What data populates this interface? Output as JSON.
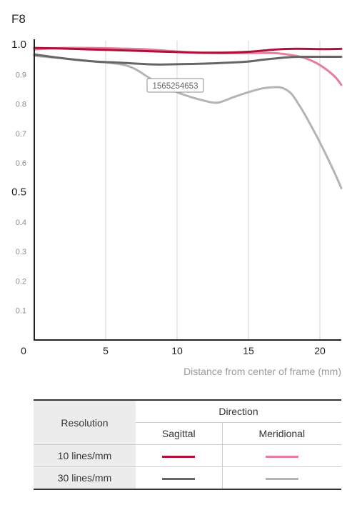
{
  "chart_data": {
    "type": "line",
    "title": "F8",
    "xlabel": "Distance from center of frame (mm)",
    "ylabel": "",
    "xlim": [
      0,
      21.5
    ],
    "ylim": [
      0,
      1.0
    ],
    "x_ticks": [
      0,
      5,
      10,
      15,
      20
    ],
    "x_tick_labels": [
      "0",
      "5",
      "10",
      "15",
      "20"
    ],
    "y_ticks": [
      0.1,
      0.2,
      0.3,
      0.4,
      0.5,
      0.6,
      0.7,
      0.8,
      0.9,
      1.0
    ],
    "y_tick_labels": [
      "0.1",
      "0.2",
      "0.3",
      "0.4",
      "0.5",
      "0.6",
      "0.7",
      "0.8",
      "0.9",
      "1.0"
    ],
    "grid": "vertical",
    "annotation": "1565254653",
    "series": [
      {
        "key": "10-sagittal",
        "color": "#b0103a",
        "width": 3,
        "points": [
          [
            0,
            0.99
          ],
          [
            2,
            0.988
          ],
          [
            4,
            0.985
          ],
          [
            6,
            0.982
          ],
          [
            8,
            0.979
          ],
          [
            10,
            0.976
          ],
          [
            12,
            0.974
          ],
          [
            14,
            0.975
          ],
          [
            15,
            0.977
          ],
          [
            16,
            0.981
          ],
          [
            17,
            0.985
          ],
          [
            18,
            0.987
          ],
          [
            19,
            0.987
          ],
          [
            20,
            0.986
          ],
          [
            21.5,
            0.987
          ]
        ]
      },
      {
        "key": "10-meridional",
        "color": "#e57f9a",
        "width": 3,
        "points": [
          [
            0,
            0.985
          ],
          [
            2,
            0.99
          ],
          [
            4,
            0.99
          ],
          [
            6,
            0.988
          ],
          [
            8,
            0.985
          ],
          [
            10,
            0.978
          ],
          [
            12,
            0.973
          ],
          [
            14,
            0.972
          ],
          [
            16,
            0.973
          ],
          [
            17,
            0.972
          ],
          [
            18,
            0.966
          ],
          [
            19,
            0.955
          ],
          [
            20,
            0.932
          ],
          [
            21,
            0.895
          ],
          [
            21.5,
            0.865
          ]
        ]
      },
      {
        "key": "30-sagittal",
        "color": "#666666",
        "width": 3,
        "points": [
          [
            0,
            0.968
          ],
          [
            2,
            0.955
          ],
          [
            4,
            0.945
          ],
          [
            6,
            0.94
          ],
          [
            8.5,
            0.934
          ],
          [
            10,
            0.935
          ],
          [
            12,
            0.937
          ],
          [
            14,
            0.941
          ],
          [
            15,
            0.944
          ],
          [
            16,
            0.95
          ],
          [
            17,
            0.955
          ],
          [
            18,
            0.959
          ],
          [
            19,
            0.96
          ],
          [
            20,
            0.96
          ],
          [
            21.5,
            0.96
          ]
        ]
      },
      {
        "key": "30-meridional",
        "color": "#b4b4b4",
        "width": 3,
        "points": [
          [
            0,
            0.963
          ],
          [
            2,
            0.955
          ],
          [
            4,
            0.945
          ],
          [
            6,
            0.935
          ],
          [
            7,
            0.92
          ],
          [
            8,
            0.89
          ],
          [
            9,
            0.86
          ],
          [
            10,
            0.84
          ],
          [
            11,
            0.823
          ],
          [
            12,
            0.81
          ],
          [
            12.5,
            0.805
          ],
          [
            13,
            0.806
          ],
          [
            14,
            0.824
          ],
          [
            15,
            0.84
          ],
          [
            16,
            0.853
          ],
          [
            17,
            0.857
          ],
          [
            17.5,
            0.852
          ],
          [
            18,
            0.835
          ],
          [
            18.5,
            0.8
          ],
          [
            19,
            0.76
          ],
          [
            20,
            0.67
          ],
          [
            21,
            0.57
          ],
          [
            21.5,
            0.515
          ]
        ]
      }
    ]
  },
  "legend": {
    "resolution_header": "Resolution",
    "direction_header": "Direction",
    "sagittal_header": "Sagittal",
    "meridional_header": "Meridional",
    "rows": [
      {
        "label": "10 lines/mm",
        "sagittal_color": "#b0103a",
        "meridional_color": "#e57f9a"
      },
      {
        "label": "30 lines/mm",
        "sagittal_color": "#666666",
        "meridional_color": "#b4b4b4"
      }
    ]
  }
}
